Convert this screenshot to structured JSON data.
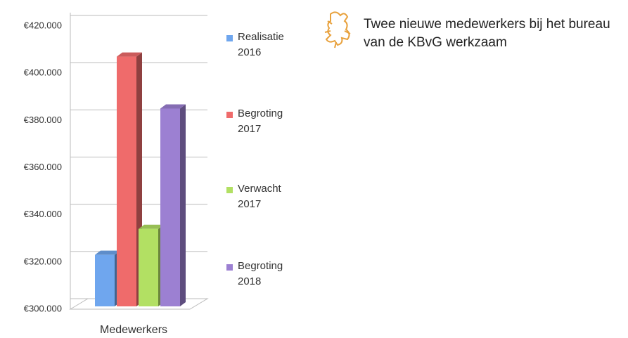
{
  "chart_data": {
    "type": "bar3d",
    "title": "Twee nieuwe medewerkers bij het bureau van de KBvG werkzaam",
    "categories": [
      "Medewerkers"
    ],
    "series": [
      {
        "name": "Realisatie 2016",
        "color": "#6fa6ee",
        "values": [
          326000
        ]
      },
      {
        "name": "Begroting 2017",
        "color": "#ef6b6b",
        "values": [
          410000
        ]
      },
      {
        "name": "Verwacht 2017",
        "color": "#b2e063",
        "values": [
          337000
        ]
      },
      {
        "name": "Begroting 2018",
        "color": "#9c80d2",
        "values": [
          388000
        ]
      }
    ],
    "ylim": [
      300000,
      420000
    ],
    "yticks": [
      {
        "value": 300000,
        "label": "€300.000"
      },
      {
        "value": 320000,
        "label": "€320.000"
      },
      {
        "value": 340000,
        "label": "€340.000"
      },
      {
        "value": 360000,
        "label": "€360.000"
      },
      {
        "value": 380000,
        "label": "€380.000"
      },
      {
        "value": 400000,
        "label": "€400.000"
      },
      {
        "value": 420000,
        "label": "€420.000"
      }
    ],
    "grid": true,
    "legend": "right"
  }
}
